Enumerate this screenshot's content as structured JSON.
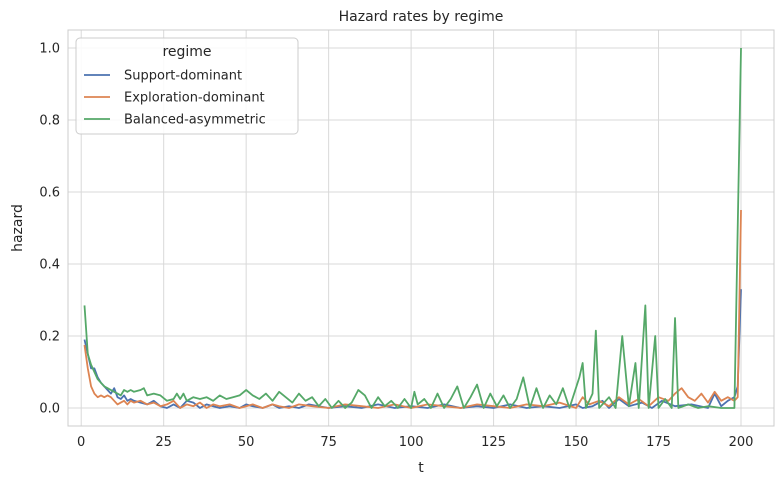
{
  "chart_data": {
    "type": "line",
    "title": "Hazard rates by regime",
    "xlabel": "t",
    "ylabel": "hazard",
    "xlim": [
      -4,
      210
    ],
    "ylim": [
      -0.05,
      1.05
    ],
    "xticks": [
      0,
      25,
      50,
      75,
      100,
      125,
      150,
      175,
      200
    ],
    "yticks": [
      0.0,
      0.2,
      0.4,
      0.6,
      0.8,
      1.0
    ],
    "grid": true,
    "legend": {
      "title": "regime",
      "placement": "top-left"
    },
    "series": [
      {
        "name": "Support-dominant",
        "color": "#4c72b0",
        "points": [
          [
            1,
            0.19
          ],
          [
            2,
            0.15
          ],
          [
            3,
            0.11
          ],
          [
            4,
            0.11
          ],
          [
            5,
            0.085
          ],
          [
            6,
            0.07
          ],
          [
            7,
            0.06
          ],
          [
            8,
            0.05
          ],
          [
            9,
            0.04
          ],
          [
            10,
            0.055
          ],
          [
            11,
            0.03
          ],
          [
            12,
            0.025
          ],
          [
            13,
            0.035
          ],
          [
            14,
            0.02
          ],
          [
            15,
            0.025
          ],
          [
            16,
            0.02
          ],
          [
            18,
            0.015
          ],
          [
            20,
            0.01
          ],
          [
            22,
            0.02
          ],
          [
            24,
            0.005
          ],
          [
            26,
            0.0
          ],
          [
            28,
            0.01
          ],
          [
            30,
            0.0
          ],
          [
            32,
            0.02
          ],
          [
            34,
            0.015
          ],
          [
            36,
            0.0
          ],
          [
            38,
            0.01
          ],
          [
            40,
            0.005
          ],
          [
            42,
            0.0
          ],
          [
            45,
            0.005
          ],
          [
            48,
            0.0
          ],
          [
            50,
            0.01
          ],
          [
            52,
            0.005
          ],
          [
            55,
            0.0
          ],
          [
            58,
            0.01
          ],
          [
            60,
            0.0
          ],
          [
            63,
            0.005
          ],
          [
            66,
            0.0
          ],
          [
            69,
            0.01
          ],
          [
            72,
            0.005
          ],
          [
            75,
            0.0
          ],
          [
            80,
            0.005
          ],
          [
            85,
            0.0
          ],
          [
            90,
            0.01
          ],
          [
            95,
            0.0
          ],
          [
            100,
            0.005
          ],
          [
            105,
            0.0
          ],
          [
            110,
            0.01
          ],
          [
            115,
            0.0
          ],
          [
            120,
            0.005
          ],
          [
            125,
            0.0
          ],
          [
            130,
            0.01
          ],
          [
            135,
            0.0
          ],
          [
            140,
            0.005
          ],
          [
            145,
            0.0
          ],
          [
            150,
            0.01
          ],
          [
            152,
            0.0
          ],
          [
            155,
            0.005
          ],
          [
            158,
            0.02
          ],
          [
            160,
            0.0
          ],
          [
            163,
            0.025
          ],
          [
            166,
            0.005
          ],
          [
            170,
            0.015
          ],
          [
            173,
            0.0
          ],
          [
            176,
            0.02
          ],
          [
            180,
            0.005
          ],
          [
            185,
            0.01
          ],
          [
            190,
            0.0
          ],
          [
            192,
            0.04
          ],
          [
            194,
            0.005
          ],
          [
            196,
            0.02
          ],
          [
            198,
            0.03
          ],
          [
            199,
            0.06
          ],
          [
            200,
            0.33
          ]
        ]
      },
      {
        "name": "Exploration-dominant",
        "color": "#dd8452",
        "points": [
          [
            1,
            0.175
          ],
          [
            2,
            0.11
          ],
          [
            3,
            0.06
          ],
          [
            4,
            0.04
          ],
          [
            5,
            0.03
          ],
          [
            6,
            0.035
          ],
          [
            7,
            0.03
          ],
          [
            8,
            0.035
          ],
          [
            9,
            0.03
          ],
          [
            10,
            0.02
          ],
          [
            11,
            0.01
          ],
          [
            12,
            0.015
          ],
          [
            13,
            0.02
          ],
          [
            14,
            0.01
          ],
          [
            15,
            0.02
          ],
          [
            16,
            0.015
          ],
          [
            18,
            0.02
          ],
          [
            20,
            0.01
          ],
          [
            22,
            0.015
          ],
          [
            24,
            0.005
          ],
          [
            26,
            0.01
          ],
          [
            28,
            0.02
          ],
          [
            30,
            0.0
          ],
          [
            32,
            0.01
          ],
          [
            34,
            0.005
          ],
          [
            36,
            0.015
          ],
          [
            38,
            0.0
          ],
          [
            40,
            0.01
          ],
          [
            42,
            0.005
          ],
          [
            45,
            0.01
          ],
          [
            48,
            0.0
          ],
          [
            50,
            0.005
          ],
          [
            52,
            0.01
          ],
          [
            55,
            0.0
          ],
          [
            58,
            0.01
          ],
          [
            60,
            0.005
          ],
          [
            63,
            0.0
          ],
          [
            66,
            0.01
          ],
          [
            70,
            0.005
          ],
          [
            75,
            0.0
          ],
          [
            80,
            0.01
          ],
          [
            85,
            0.005
          ],
          [
            90,
            0.0
          ],
          [
            95,
            0.01
          ],
          [
            100,
            0.0
          ],
          [
            105,
            0.01
          ],
          [
            110,
            0.005
          ],
          [
            115,
            0.0
          ],
          [
            120,
            0.01
          ],
          [
            125,
            0.005
          ],
          [
            130,
            0.0
          ],
          [
            135,
            0.01
          ],
          [
            140,
            0.005
          ],
          [
            145,
            0.015
          ],
          [
            150,
            0.0
          ],
          [
            152,
            0.03
          ],
          [
            154,
            0.01
          ],
          [
            157,
            0.02
          ],
          [
            160,
            0.005
          ],
          [
            163,
            0.03
          ],
          [
            166,
            0.01
          ],
          [
            169,
            0.025
          ],
          [
            172,
            0.005
          ],
          [
            175,
            0.03
          ],
          [
            178,
            0.02
          ],
          [
            180,
            0.04
          ],
          [
            182,
            0.055
          ],
          [
            184,
            0.03
          ],
          [
            186,
            0.02
          ],
          [
            188,
            0.04
          ],
          [
            190,
            0.015
          ],
          [
            192,
            0.045
          ],
          [
            194,
            0.02
          ],
          [
            196,
            0.03
          ],
          [
            198,
            0.02
          ],
          [
            199,
            0.03
          ],
          [
            200,
            0.55
          ]
        ]
      },
      {
        "name": "Balanced-asymmetric",
        "color": "#55a868",
        "points": [
          [
            1,
            0.285
          ],
          [
            2,
            0.15
          ],
          [
            3,
            0.12
          ],
          [
            4,
            0.1
          ],
          [
            5,
            0.08
          ],
          [
            6,
            0.07
          ],
          [
            7,
            0.06
          ],
          [
            8,
            0.055
          ],
          [
            9,
            0.05
          ],
          [
            10,
            0.045
          ],
          [
            11,
            0.04
          ],
          [
            12,
            0.035
          ],
          [
            13,
            0.05
          ],
          [
            14,
            0.045
          ],
          [
            15,
            0.05
          ],
          [
            16,
            0.045
          ],
          [
            18,
            0.05
          ],
          [
            19,
            0.055
          ],
          [
            20,
            0.035
          ],
          [
            22,
            0.04
          ],
          [
            24,
            0.035
          ],
          [
            26,
            0.02
          ],
          [
            28,
            0.025
          ],
          [
            29,
            0.04
          ],
          [
            30,
            0.025
          ],
          [
            31,
            0.04
          ],
          [
            32,
            0.02
          ],
          [
            34,
            0.03
          ],
          [
            36,
            0.025
          ],
          [
            38,
            0.03
          ],
          [
            40,
            0.02
          ],
          [
            42,
            0.035
          ],
          [
            44,
            0.025
          ],
          [
            46,
            0.03
          ],
          [
            48,
            0.035
          ],
          [
            50,
            0.05
          ],
          [
            52,
            0.035
          ],
          [
            54,
            0.025
          ],
          [
            56,
            0.04
          ],
          [
            58,
            0.02
          ],
          [
            60,
            0.045
          ],
          [
            62,
            0.03
          ],
          [
            64,
            0.015
          ],
          [
            66,
            0.04
          ],
          [
            68,
            0.02
          ],
          [
            70,
            0.03
          ],
          [
            72,
            0.005
          ],
          [
            74,
            0.025
          ],
          [
            76,
            0.0
          ],
          [
            78,
            0.02
          ],
          [
            80,
            0.0
          ],
          [
            82,
            0.015
          ],
          [
            84,
            0.05
          ],
          [
            86,
            0.035
          ],
          [
            88,
            0.0
          ],
          [
            90,
            0.03
          ],
          [
            92,
            0.005
          ],
          [
            94,
            0.02
          ],
          [
            96,
            0.0
          ],
          [
            98,
            0.025
          ],
          [
            100,
            0.0
          ],
          [
            101,
            0.045
          ],
          [
            102,
            0.01
          ],
          [
            104,
            0.025
          ],
          [
            106,
            0.0
          ],
          [
            108,
            0.04
          ],
          [
            110,
            0.0
          ],
          [
            112,
            0.025
          ],
          [
            114,
            0.06
          ],
          [
            116,
            0.0
          ],
          [
            118,
            0.03
          ],
          [
            120,
            0.065
          ],
          [
            122,
            0.0
          ],
          [
            124,
            0.04
          ],
          [
            126,
            0.005
          ],
          [
            128,
            0.035
          ],
          [
            130,
            0.0
          ],
          [
            132,
            0.025
          ],
          [
            134,
            0.085
          ],
          [
            136,
            0.0
          ],
          [
            138,
            0.055
          ],
          [
            140,
            0.0
          ],
          [
            142,
            0.035
          ],
          [
            144,
            0.01
          ],
          [
            146,
            0.055
          ],
          [
            148,
            0.0
          ],
          [
            151,
            0.085
          ],
          [
            152,
            0.125
          ],
          [
            153,
            0.0
          ],
          [
            155,
            0.04
          ],
          [
            156,
            0.215
          ],
          [
            157,
            0.0
          ],
          [
            160,
            0.03
          ],
          [
            162,
            0.0
          ],
          [
            164,
            0.2
          ],
          [
            166,
            0.005
          ],
          [
            168,
            0.125
          ],
          [
            169,
            0.0
          ],
          [
            171,
            0.285
          ],
          [
            172,
            0.0
          ],
          [
            174,
            0.2
          ],
          [
            175,
            0.0
          ],
          [
            177,
            0.025
          ],
          [
            179,
            0.0
          ],
          [
            180,
            0.25
          ],
          [
            181,
            0.0
          ],
          [
            184,
            0.01
          ],
          [
            187,
            0.0
          ],
          [
            190,
            0.005
          ],
          [
            194,
            0.0
          ],
          [
            198,
            0.0
          ],
          [
            200,
            1.0
          ]
        ]
      }
    ]
  }
}
